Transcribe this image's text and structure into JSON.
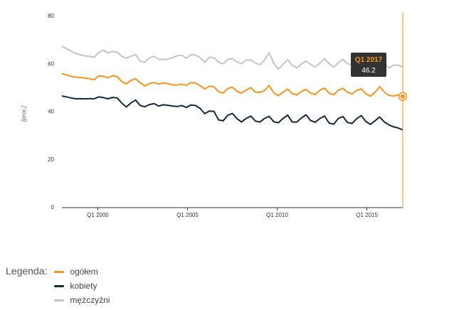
{
  "colors": {
    "ogolem": "#f7931e",
    "kobiety": "#14283c",
    "mezczyzni": "#c2c4c6",
    "crosshair": "#f7931e",
    "tooltip_bg": "#333333",
    "axis": "#333333"
  },
  "chart_data": {
    "type": "line",
    "ylabel": "[proc.]",
    "ylim": [
      0,
      80
    ],
    "yticks": [
      "0",
      "20",
      "40",
      "60",
      "80"
    ],
    "xlim": [
      "Q1 1998",
      "Q1 2017"
    ],
    "xticks": [
      "Q1 2000",
      "Q1 2005",
      "Q1 2010",
      "Q1 2015"
    ],
    "grid": false,
    "legend_placement": "bottom-left",
    "series": [
      {
        "name": "ogółem",
        "color_key": "ogolem",
        "values": [
          55.8,
          55.2,
          54.6,
          54.3,
          54.1,
          53.9,
          53.6,
          53.2,
          54.8,
          54.6,
          54.0,
          54.9,
          54.5,
          52.4,
          51.5,
          52.9,
          53.6,
          51.9,
          50.6,
          51.6,
          52.0,
          51.4,
          51.8,
          51.5,
          51.1,
          50.9,
          51.4,
          50.8,
          52.0,
          51.8,
          50.7,
          49.3,
          50.5,
          50.3,
          48.2,
          47.6,
          49.5,
          50.1,
          48.4,
          47.6,
          48.9,
          49.9,
          48.0,
          47.9,
          48.7,
          50.8,
          47.6,
          46.5,
          48.0,
          49.3,
          47.4,
          46.8,
          48.3,
          49.1,
          47.6,
          47.0,
          48.8,
          49.7,
          47.6,
          46.9,
          48.8,
          49.6,
          47.9,
          47.3,
          48.8,
          49.4,
          47.3,
          46.3,
          48.0,
          50.3,
          48.0,
          46.6,
          46.4,
          46.8,
          46.2
        ]
      },
      {
        "name": "kobiety",
        "color_key": "kobiety",
        "values": [
          46.4,
          46.0,
          45.6,
          45.2,
          45.3,
          45.2,
          45.3,
          45.2,
          46.0,
          45.7,
          45.2,
          45.8,
          45.6,
          43.4,
          41.8,
          43.5,
          44.7,
          42.4,
          41.9,
          42.8,
          43.2,
          42.2,
          42.7,
          42.5,
          42.2,
          42.0,
          42.4,
          41.6,
          42.6,
          42.4,
          41.2,
          39.0,
          40.1,
          40.0,
          36.4,
          36.0,
          38.3,
          39.1,
          36.9,
          35.5,
          37.0,
          38.0,
          35.9,
          35.5,
          37.0,
          37.9,
          35.6,
          35.2,
          37.0,
          38.4,
          35.5,
          35.5,
          37.2,
          38.5,
          36.1,
          35.4,
          37.0,
          38.0,
          35.1,
          34.6,
          37.0,
          37.8,
          35.3,
          34.9,
          36.9,
          38.2,
          35.7,
          34.5,
          36.1,
          37.6,
          35.5,
          34.3,
          33.5,
          33.0,
          32.2
        ]
      },
      {
        "name": "mężczyźni",
        "color_key": "mezczyzni",
        "values": [
          67.2,
          66.2,
          65.2,
          64.2,
          63.6,
          63.2,
          63.0,
          62.6,
          64.6,
          65.6,
          64.4,
          65.0,
          64.7,
          63.0,
          62.2,
          63.0,
          63.8,
          61.0,
          60.5,
          62.4,
          63.0,
          61.8,
          61.6,
          61.8,
          62.4,
          63.2,
          63.4,
          62.2,
          63.7,
          63.5,
          62.4,
          60.5,
          62.6,
          62.4,
          60.5,
          59.8,
          61.7,
          62.0,
          60.6,
          60.0,
          61.4,
          61.4,
          60.2,
          59.5,
          61.5,
          64.4,
          60.0,
          57.6,
          59.6,
          61.6,
          59.2,
          58.1,
          59.9,
          61.0,
          59.6,
          58.5,
          60.2,
          62.0,
          60.0,
          58.5,
          60.3,
          61.7,
          59.9,
          59.3,
          61.1,
          61.4,
          59.4,
          58.5,
          60.7,
          62.3,
          60.0,
          58.1,
          59.3,
          59.3,
          58.5
        ]
      }
    ],
    "tooltip": {
      "label": "Q1 2017",
      "value": "46.2",
      "series_index": 0
    }
  },
  "legend": {
    "title": "Legenda:",
    "items": [
      {
        "label": "ogółem",
        "color_key": "ogolem"
      },
      {
        "label": "kobiety",
        "color_key": "kobiety"
      },
      {
        "label": "mężczyźni",
        "color_key": "mezczyzni"
      }
    ]
  }
}
